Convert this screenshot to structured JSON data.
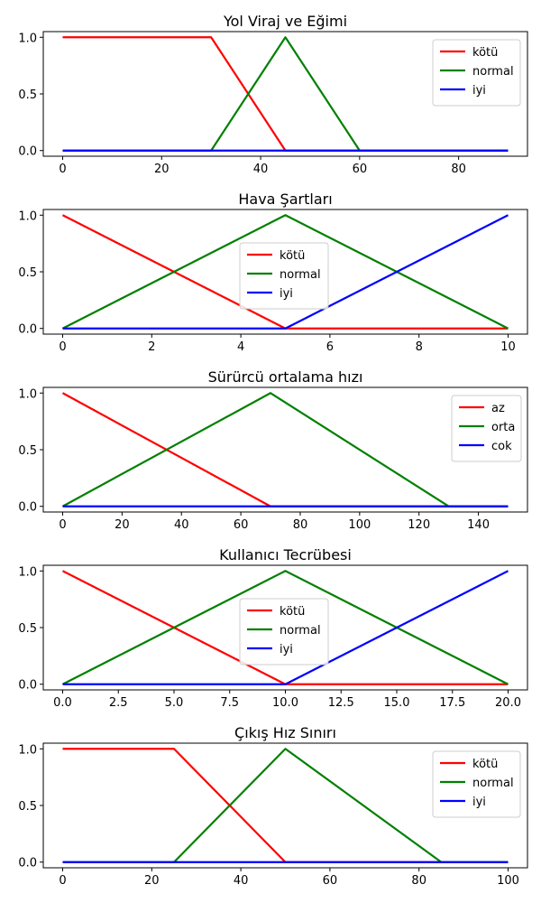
{
  "chart_data": [
    {
      "type": "line",
      "title": "Yol Viraj ve Eğimi",
      "xlim": [
        0,
        90
      ],
      "ylim": [
        0,
        1
      ],
      "xticks": [
        "0",
        "20",
        "40",
        "60",
        "80"
      ],
      "yticks": [
        "0.0",
        "0.5",
        "1.0"
      ],
      "legend_position": "top-right",
      "series": [
        {
          "name": "kötü",
          "color": "#ff0000",
          "x": [
            0,
            30,
            45,
            90
          ],
          "y": [
            1,
            1,
            0,
            0
          ]
        },
        {
          "name": "normal",
          "color": "#008000",
          "x": [
            0,
            30,
            45,
            60,
            90
          ],
          "y": [
            0,
            0,
            1,
            0,
            0
          ]
        },
        {
          "name": "iyi",
          "color": "#0000ff",
          "x": [
            0,
            90
          ],
          "y": [
            0,
            0
          ]
        }
      ]
    },
    {
      "type": "line",
      "title": "Hava Şartları",
      "xlim": [
        0,
        10
      ],
      "ylim": [
        0,
        1
      ],
      "xticks": [
        "0",
        "2",
        "4",
        "6",
        "8",
        "10"
      ],
      "yticks": [
        "0.0",
        "0.5",
        "1.0"
      ],
      "legend_position": "center",
      "series": [
        {
          "name": "kötü",
          "color": "#ff0000",
          "x": [
            0,
            5,
            10
          ],
          "y": [
            1,
            0,
            0
          ]
        },
        {
          "name": "normal",
          "color": "#008000",
          "x": [
            0,
            5,
            10
          ],
          "y": [
            0,
            1,
            0
          ]
        },
        {
          "name": "iyi",
          "color": "#0000ff",
          "x": [
            0,
            5,
            10
          ],
          "y": [
            0,
            0,
            1
          ]
        }
      ]
    },
    {
      "type": "line",
      "title": "Sürürcü ortalama hızı",
      "xlim": [
        0,
        150
      ],
      "ylim": [
        0,
        1
      ],
      "xticks": [
        "0",
        "20",
        "40",
        "60",
        "80",
        "100",
        "120",
        "140"
      ],
      "yticks": [
        "0.0",
        "0.5",
        "1.0"
      ],
      "legend_position": "top-right",
      "series": [
        {
          "name": "az",
          "color": "#ff0000",
          "x": [
            0,
            70,
            150
          ],
          "y": [
            1,
            0,
            0
          ]
        },
        {
          "name": "orta",
          "color": "#008000",
          "x": [
            0,
            70,
            130,
            150
          ],
          "y": [
            0,
            1,
            0,
            0
          ]
        },
        {
          "name": "cok",
          "color": "#0000ff",
          "x": [
            0,
            150
          ],
          "y": [
            0,
            0
          ]
        }
      ]
    },
    {
      "type": "line",
      "title": "Kullanıcı Tecrübesi",
      "xlim": [
        0,
        20
      ],
      "ylim": [
        0,
        1
      ],
      "xticks": [
        "0.0",
        "2.5",
        "5.0",
        "7.5",
        "10.0",
        "12.5",
        "15.0",
        "17.5",
        "20.0"
      ],
      "yticks": [
        "0.0",
        "0.5",
        "1.0"
      ],
      "legend_position": "center",
      "series": [
        {
          "name": "kötü",
          "color": "#ff0000",
          "x": [
            0,
            10,
            20
          ],
          "y": [
            1,
            0,
            0
          ]
        },
        {
          "name": "normal",
          "color": "#008000",
          "x": [
            0,
            10,
            20
          ],
          "y": [
            0,
            1,
            0
          ]
        },
        {
          "name": "iyi",
          "color": "#0000ff",
          "x": [
            0,
            10,
            20
          ],
          "y": [
            0,
            0,
            1
          ]
        }
      ]
    },
    {
      "type": "line",
      "title": "Çıkış Hız Sınırı",
      "xlim": [
        0,
        100
      ],
      "ylim": [
        0,
        1
      ],
      "xticks": [
        "0",
        "20",
        "40",
        "60",
        "80",
        "100"
      ],
      "yticks": [
        "0.0",
        "0.5",
        "1.0"
      ],
      "legend_position": "top-right",
      "series": [
        {
          "name": "kötü",
          "color": "#ff0000",
          "x": [
            0,
            25,
            50,
            100
          ],
          "y": [
            1,
            1,
            0,
            0
          ]
        },
        {
          "name": "normal",
          "color": "#008000",
          "x": [
            0,
            25,
            50,
            85,
            100
          ],
          "y": [
            0,
            0,
            1,
            0,
            0
          ]
        },
        {
          "name": "iyi",
          "color": "#0000ff",
          "x": [
            0,
            100
          ],
          "y": [
            0,
            0
          ]
        }
      ]
    }
  ]
}
